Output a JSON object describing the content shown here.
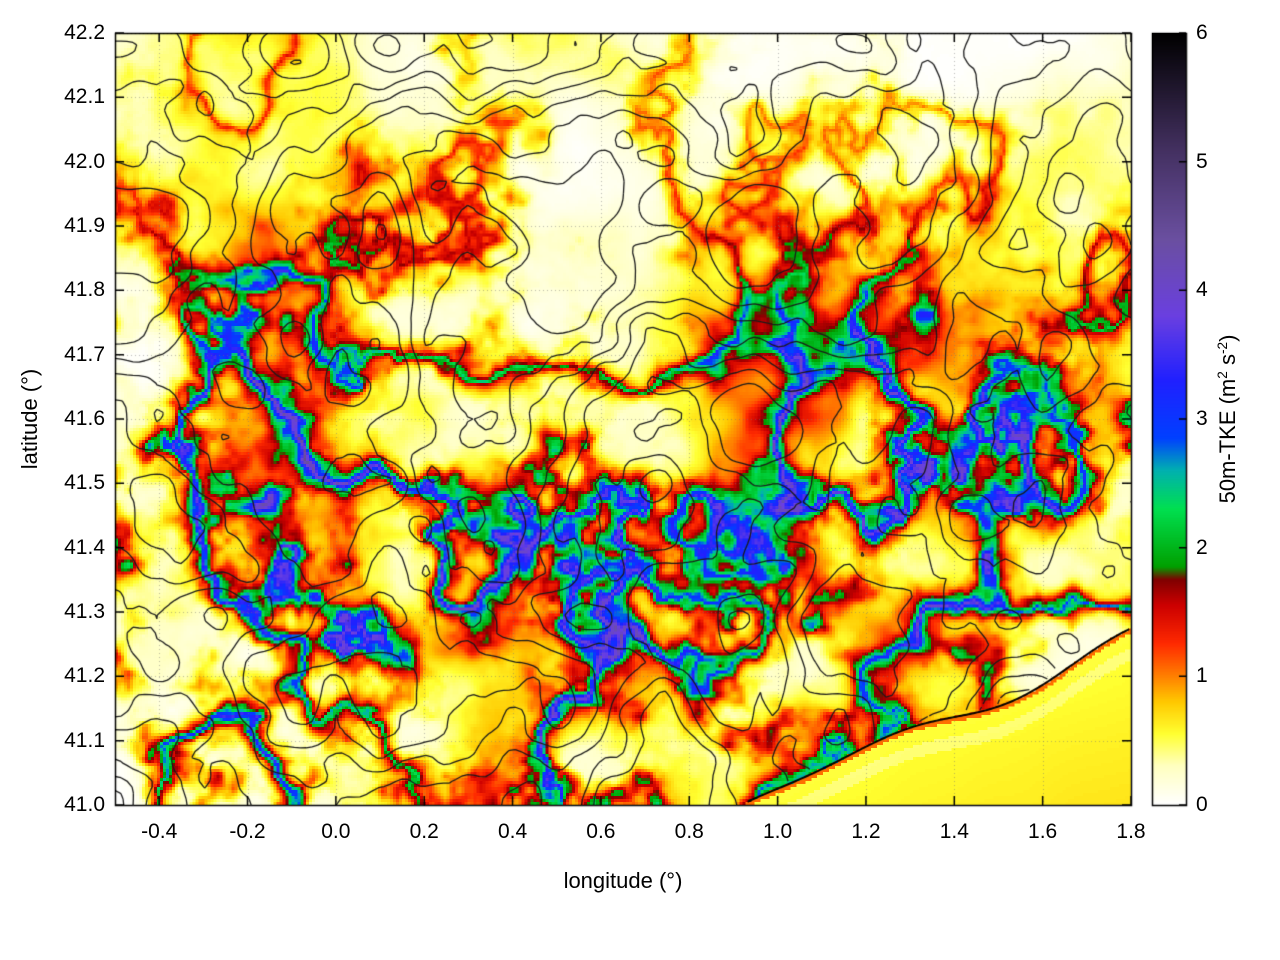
{
  "figure": {
    "background": "#ffffff"
  },
  "chart_data": {
    "type": "heatmap",
    "title": "",
    "xlabel": "longitude (°)",
    "ylabel": "latitude (°)",
    "x_range": [
      -0.5,
      1.8
    ],
    "y_range": [
      41.0,
      42.2
    ],
    "x_ticks": [
      "-0.4",
      "-0.2",
      "0.0",
      "0.2",
      "0.4",
      "0.6",
      "0.8",
      "1.0",
      "1.2",
      "1.4",
      "1.6",
      "1.8"
    ],
    "y_ticks": [
      "41.0",
      "41.1",
      "41.2",
      "41.3",
      "41.4",
      "41.5",
      "41.6",
      "41.7",
      "41.8",
      "41.9",
      "42.0",
      "42.1",
      "42.2"
    ],
    "grid": "dotted",
    "field": "50 m turbulent kinetic energy field over terrain, with black terrain/topography contour lines and a smooth sea region in the bottom-right corner",
    "colorbar": {
      "label": "50m-TKE (m² s⁻²)",
      "label_parts": [
        "50m-TKE (m",
        "2",
        " s",
        "-2",
        ")"
      ],
      "range": [
        0,
        6
      ],
      "ticks": [
        "0",
        "1",
        "2",
        "3",
        "4",
        "5",
        "6"
      ],
      "palette": [
        {
          "v": 0.0,
          "c": "#ffffff"
        },
        {
          "v": 0.3,
          "c": "#ffffc0"
        },
        {
          "v": 0.55,
          "c": "#ffff30"
        },
        {
          "v": 0.8,
          "c": "#ffc800"
        },
        {
          "v": 1.0,
          "c": "#ff7f00"
        },
        {
          "v": 1.25,
          "c": "#ff2a00"
        },
        {
          "v": 1.55,
          "c": "#cc0000"
        },
        {
          "v": 1.75,
          "c": "#7f0000"
        },
        {
          "v": 1.85,
          "c": "#00a000"
        },
        {
          "v": 2.3,
          "c": "#00e050"
        },
        {
          "v": 2.6,
          "c": "#00b0b0"
        },
        {
          "v": 2.85,
          "c": "#0040ff"
        },
        {
          "v": 3.3,
          "c": "#2020ff"
        },
        {
          "v": 3.8,
          "c": "#6a3fe0"
        },
        {
          "v": 4.4,
          "c": "#6a4fa0"
        },
        {
          "v": 5.1,
          "c": "#433060"
        },
        {
          "v": 6.0,
          "c": "#000000"
        }
      ]
    },
    "overlays": [
      {
        "name": "terrain-contours",
        "color": "#1a1a1a"
      },
      {
        "name": "coastline",
        "color": "#000000"
      }
    ],
    "sea": {
      "corner": "bottom-right",
      "start_lon": 0.93,
      "end_lat_at_right_edge": 41.27,
      "approx_value": 0.55
    },
    "hotspots": [
      {
        "lon": -0.48,
        "lat": 41.5,
        "i": 1.4,
        "r": 0.2
      },
      {
        "lon": -0.25,
        "lat": 41.55,
        "i": 1.0,
        "r": 0.3
      },
      {
        "lon": -0.38,
        "lat": 41.28,
        "i": 1.1,
        "r": 0.26
      },
      {
        "lon": -0.2,
        "lat": 41.05,
        "i": 1.2,
        "r": 0.14
      },
      {
        "lon": 0.15,
        "lat": 41.35,
        "i": 1.1,
        "r": 0.22
      },
      {
        "lon": 0.47,
        "lat": 41.42,
        "i": 1.5,
        "r": 0.22
      },
      {
        "lon": 0.45,
        "lat": 41.15,
        "i": 1.5,
        "r": 0.2
      },
      {
        "lon": 0.75,
        "lat": 41.06,
        "i": 1.3,
        "r": 0.16
      },
      {
        "lon": 1.25,
        "lat": 41.55,
        "i": 1.0,
        "r": 0.28
      },
      {
        "lon": 1.45,
        "lat": 41.45,
        "i": 0.8,
        "r": 0.22
      },
      {
        "lon": -0.15,
        "lat": 41.85,
        "i": 0.5,
        "r": 0.12
      }
    ]
  }
}
